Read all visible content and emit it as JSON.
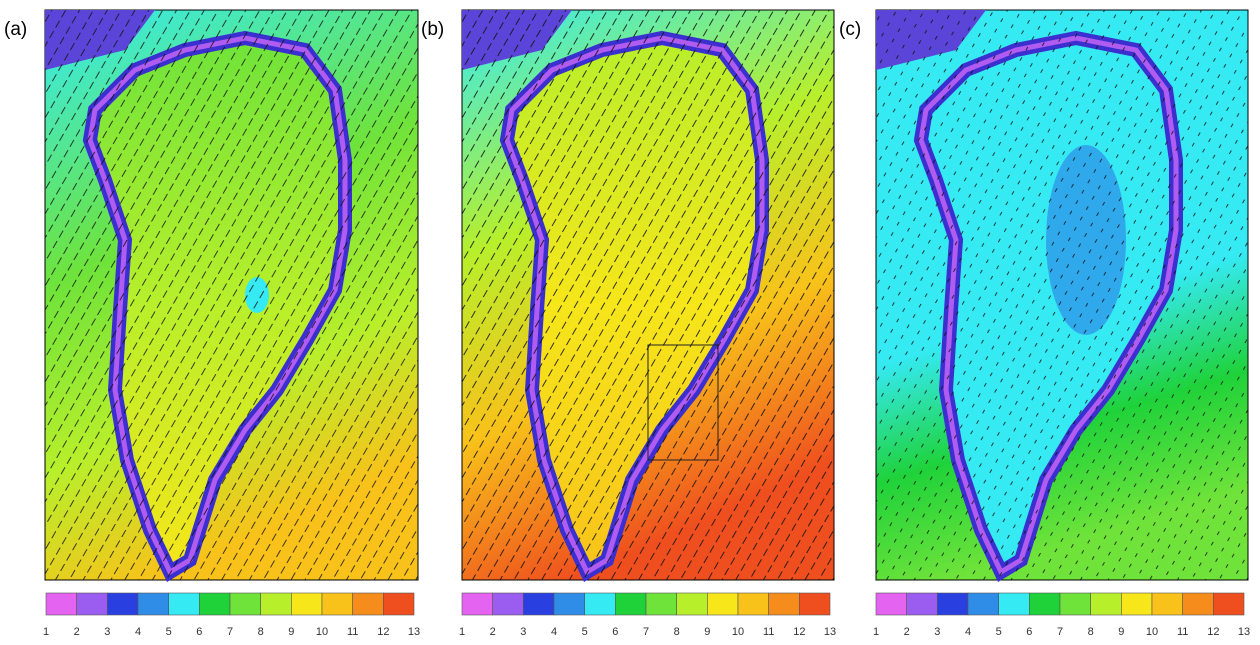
{
  "panels": [
    {
      "label": "(a)"
    },
    {
      "label": "(b)"
    },
    {
      "label": "(c)"
    }
  ],
  "colorbar": {
    "ticks": [
      1,
      2,
      3,
      4,
      5,
      6,
      7,
      8,
      9,
      10,
      11,
      12,
      13
    ],
    "colors": [
      "#e463f0",
      "#9b5cf0",
      "#2a3fe0",
      "#2f8de8",
      "#35eaf3",
      "#1fd23a",
      "#6fe33a",
      "#b8ef2b",
      "#f6e61a",
      "#f8c21a",
      "#f58c1c",
      "#ef4f1e",
      "#d8281c"
    ]
  }
}
